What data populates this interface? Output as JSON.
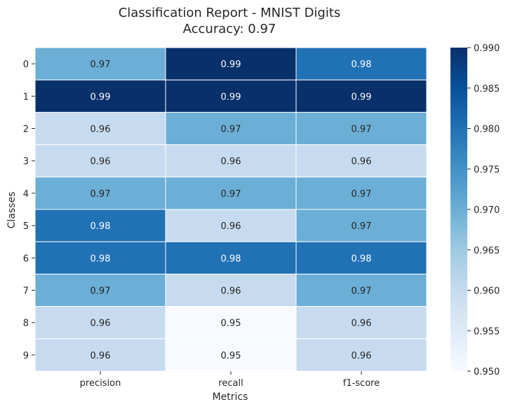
{
  "chart_data": {
    "type": "heatmap",
    "title": "Classification Report - MNIST Digits",
    "subtitle": "Accuracy: 0.97",
    "xlabel": "Metrics",
    "ylabel": "Classes",
    "columns": [
      "precision",
      "recall",
      "f1-score"
    ],
    "rows": [
      "0",
      "1",
      "2",
      "3",
      "4",
      "5",
      "6",
      "7",
      "8",
      "9"
    ],
    "values": [
      [
        0.97,
        0.99,
        0.98
      ],
      [
        0.99,
        0.99,
        0.99
      ],
      [
        0.96,
        0.97,
        0.97
      ],
      [
        0.96,
        0.96,
        0.96
      ],
      [
        0.97,
        0.97,
        0.97
      ],
      [
        0.98,
        0.96,
        0.97
      ],
      [
        0.98,
        0.98,
        0.98
      ],
      [
        0.97,
        0.96,
        0.97
      ],
      [
        0.96,
        0.95,
        0.96
      ],
      [
        0.96,
        0.95,
        0.96
      ]
    ],
    "labels": [
      [
        "0.97",
        "0.99",
        "0.98"
      ],
      [
        "0.99",
        "0.99",
        "0.99"
      ],
      [
        "0.96",
        "0.97",
        "0.97"
      ],
      [
        "0.96",
        "0.96",
        "0.96"
      ],
      [
        "0.97",
        "0.97",
        "0.97"
      ],
      [
        "0.98",
        "0.96",
        "0.97"
      ],
      [
        "0.98",
        "0.98",
        "0.98"
      ],
      [
        "0.97",
        "0.96",
        "0.97"
      ],
      [
        "0.96",
        "0.95",
        "0.96"
      ],
      [
        "0.96",
        "0.95",
        "0.96"
      ]
    ],
    "colorbar": {
      "vmin": 0.95,
      "vmax": 0.99,
      "ticks": [
        "0.950",
        "0.955",
        "0.960",
        "0.965",
        "0.970",
        "0.975",
        "0.980",
        "0.985",
        "0.990"
      ]
    },
    "colormap": "Blues",
    "colors": {
      "dark_text": "#262626",
      "light_text": "#ffffff",
      "grid_line": "#ffffff"
    }
  }
}
